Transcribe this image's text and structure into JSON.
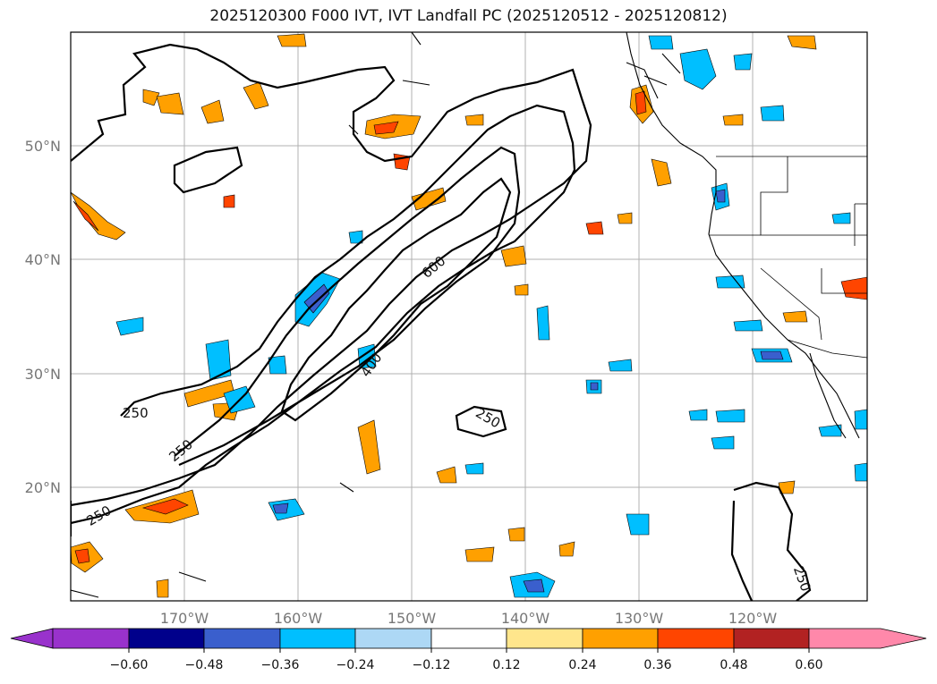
{
  "title": "2025120300 F000 IVT, IVT Landfall PC (2025120512 - 2025120812)",
  "lat_labels": [
    "50°N",
    "40°N",
    "30°N",
    "20°N"
  ],
  "lon_labels": [
    "170°W",
    "160°W",
    "150°W",
    "140°W",
    "130°W",
    "120°W"
  ],
  "contour_labels": [
    "250",
    "250",
    "600",
    "400",
    "250",
    "250",
    "250"
  ],
  "colorbar": {
    "ticks": [
      "−0.60",
      "−0.48",
      "−0.36",
      "−0.24",
      "−0.12",
      "0.12",
      "0.24",
      "0.36",
      "0.48",
      "0.60"
    ],
    "colors": [
      "#9932cc",
      "#00008b",
      "#3a5fcd",
      "#00bfff",
      "#add8f5",
      "#ffffff",
      "#ffe68c",
      "#ffa000",
      "#ff4500",
      "#b22222",
      "#ff88aa"
    ]
  }
}
